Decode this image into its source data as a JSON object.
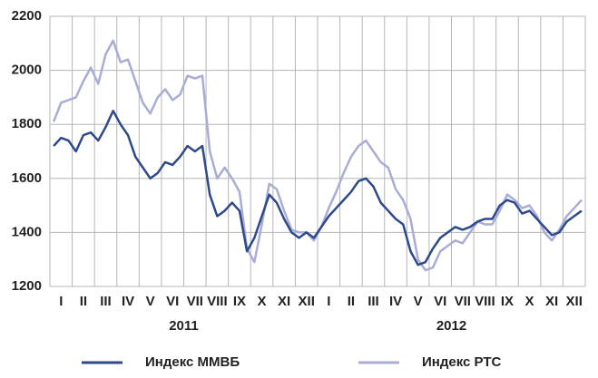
{
  "chart_data": {
    "type": "line",
    "categories": [
      null,
      "I",
      null,
      null,
      "II",
      null,
      null,
      "III",
      null,
      null,
      "IV",
      null,
      null,
      "V",
      null,
      null,
      "VI",
      null,
      null,
      "VII",
      null,
      null,
      "VIII",
      null,
      null,
      "IX",
      null,
      null,
      "X",
      null,
      null,
      "XI",
      null,
      null,
      "XII",
      null,
      null,
      "I",
      null,
      null,
      "II",
      null,
      null,
      "III",
      null,
      null,
      "IV",
      null,
      null,
      "V",
      null,
      null,
      "VI",
      null,
      null,
      "VII",
      null,
      null,
      "VIII",
      null,
      null,
      "IX",
      null,
      null,
      "X",
      null,
      null,
      "XI",
      null,
      null,
      "XII",
      null
    ],
    "x_groups": [
      {
        "label": "2011"
      },
      {
        "label": "2012"
      }
    ],
    "series": [
      {
        "name": "Индекс ММВБ",
        "color": "#2d4a8c",
        "values": [
          1720,
          1750,
          1740,
          1700,
          1760,
          1770,
          1740,
          1790,
          1850,
          1800,
          1760,
          1680,
          1640,
          1600,
          1620,
          1660,
          1650,
          1680,
          1720,
          1700,
          1720,
          1540,
          1460,
          1480,
          1510,
          1480,
          1330,
          1380,
          1460,
          1540,
          1510,
          1450,
          1400,
          1380,
          1400,
          1380,
          1420,
          1460,
          1490,
          1520,
          1550,
          1590,
          1600,
          1570,
          1510,
          1480,
          1450,
          1430,
          1330,
          1280,
          1290,
          1340,
          1380,
          1400,
          1420,
          1410,
          1420,
          1440,
          1450,
          1450,
          1500,
          1520,
          1510,
          1470,
          1480,
          1450,
          1420,
          1390,
          1400,
          1440,
          1460,
          1480
        ]
      },
      {
        "name": "Индекс РТС",
        "color": "#a9acd6",
        "values": [
          1810,
          1880,
          1890,
          1900,
          1960,
          2010,
          1950,
          2060,
          2110,
          2030,
          2040,
          1960,
          1880,
          1840,
          1900,
          1930,
          1890,
          1910,
          1980,
          1970,
          1980,
          1700,
          1600,
          1640,
          1600,
          1550,
          1340,
          1290,
          1430,
          1580,
          1560,
          1480,
          1410,
          1400,
          1400,
          1370,
          1420,
          1490,
          1550,
          1620,
          1680,
          1720,
          1740,
          1700,
          1660,
          1640,
          1560,
          1520,
          1450,
          1300,
          1260,
          1270,
          1330,
          1350,
          1370,
          1360,
          1400,
          1440,
          1430,
          1430,
          1480,
          1540,
          1520,
          1490,
          1500,
          1460,
          1400,
          1370,
          1410,
          1460,
          1490,
          1520
        ]
      }
    ],
    "ylim": [
      1200,
      2200
    ],
    "yticks": [
      1200,
      1400,
      1600,
      1800,
      2000,
      2200
    ],
    "grid": true,
    "legend": "bottom"
  }
}
